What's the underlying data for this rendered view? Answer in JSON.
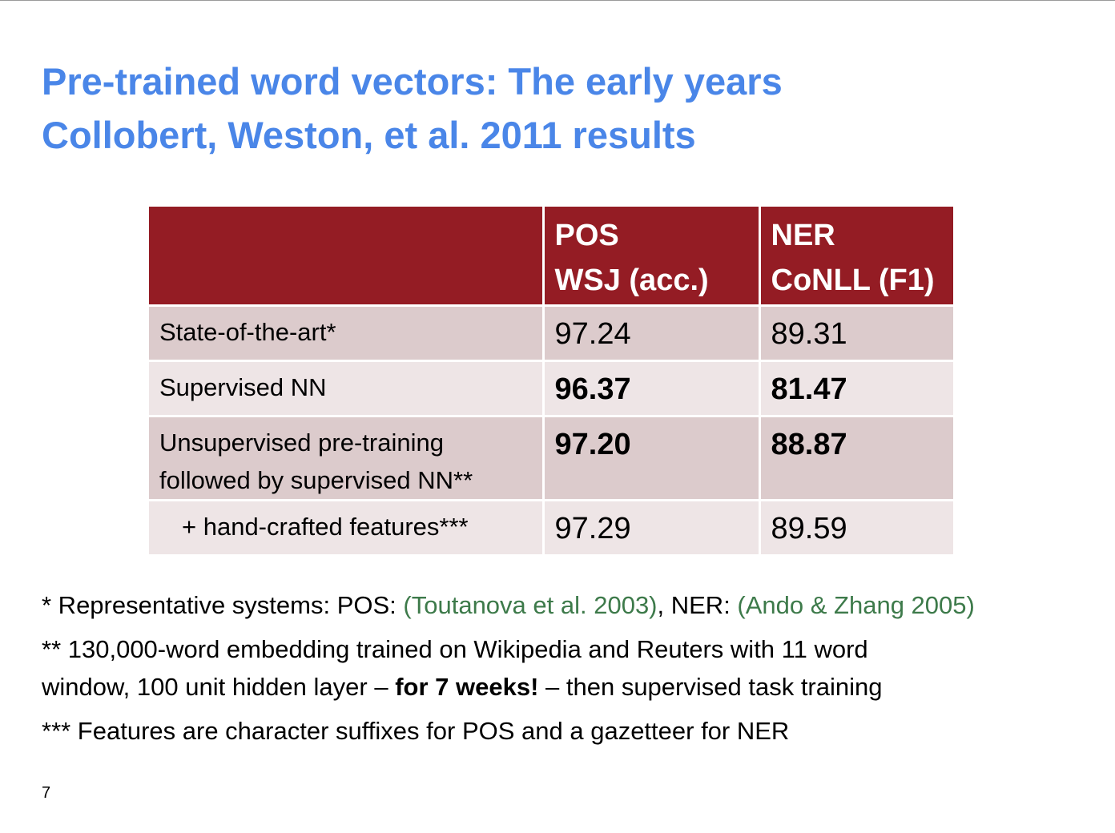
{
  "slide": {
    "title_line1": "Pre-trained word vectors: The early years",
    "title_line2": "Collobert, Weston, et al. 2011 results",
    "page_number": "7"
  },
  "table": {
    "header": {
      "col0": "",
      "col1_line1": "POS",
      "col1_line2": "WSJ (acc.)",
      "col2_line1": "NER",
      "col2_line2": "CoNLL (F1)"
    },
    "rows": [
      {
        "label": "State-of-the-art*",
        "pos": "97.24",
        "ner": "89.31",
        "bold": false
      },
      {
        "label": "Supervised NN",
        "pos": "96.37",
        "ner": "81.47",
        "bold": true
      },
      {
        "label_line1": "Unsupervised pre-training",
        "label_line2": "followed by supervised NN**",
        "pos": "97.20",
        "ner": "88.87",
        "bold": true
      },
      {
        "label": "+ hand-crafted features***",
        "pos": "97.29",
        "ner": "89.59",
        "bold": false
      }
    ]
  },
  "footnotes": {
    "note1": {
      "prefix": "* Representative systems: POS: ",
      "cite1": "(Toutanova et al. 2003)",
      "middle": ", NER: ",
      "cite2": "(Ando & Zhang 2005)"
    },
    "note2": {
      "line1": "** 130,000-word embedding trained on Wikipedia and Reuters with 11 word",
      "line2_prefix": "window, 100 unit hidden layer – ",
      "line2_emphasis": "for 7 weeks!",
      "line2_suffix": " – then supervised task training"
    },
    "note3": "*** Features are character suffixes for POS and a gazetteer for NER"
  },
  "colors": {
    "title": "#4a86e8",
    "header_bg": "#941c24",
    "row_dark": "#dccbcc",
    "row_light": "#eee5e6",
    "citation": "#3d7a4a"
  }
}
